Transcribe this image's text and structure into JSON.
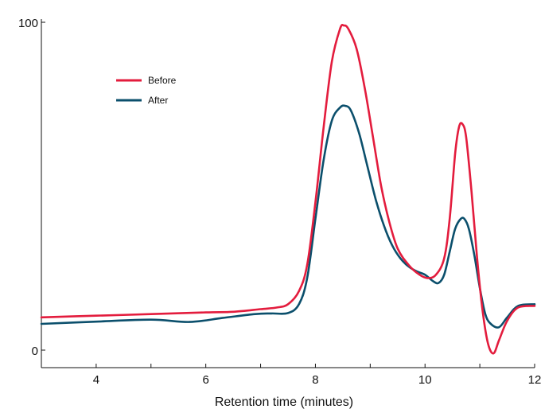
{
  "chart_data": {
    "type": "line",
    "title": "",
    "xlabel": "Retention time (minutes)",
    "ylabel": "",
    "xlim": [
      3,
      12
    ],
    "ylim": [
      0,
      100
    ],
    "x_ticks": [
      4,
      6,
      8,
      10,
      12
    ],
    "y_ticks": [
      0,
      100
    ],
    "grid": false,
    "legend_position": "top-left",
    "series": [
      {
        "name": "Before",
        "color": "#e31c3d",
        "x": [
          3.0,
          4.0,
          5.0,
          6.0,
          6.5,
          7.0,
          7.3,
          7.5,
          7.7,
          7.85,
          8.0,
          8.15,
          8.3,
          8.45,
          8.52,
          8.6,
          8.75,
          8.9,
          9.05,
          9.2,
          9.35,
          9.5,
          9.7,
          9.9,
          10.05,
          10.2,
          10.35,
          10.45,
          10.55,
          10.62,
          10.68,
          10.75,
          10.85,
          10.95,
          11.05,
          11.15,
          11.25,
          11.35,
          11.5,
          11.7,
          12.0
        ],
        "y": [
          10.0,
          10.5,
          11.0,
          11.5,
          11.7,
          12.5,
          13.0,
          14.0,
          18.0,
          26.0,
          45.0,
          68.0,
          88.0,
          98.0,
          99.0,
          98.0,
          92.0,
          80.0,
          65.0,
          50.0,
          39.0,
          31.0,
          26.0,
          23.0,
          22.0,
          23.0,
          28.0,
          40.0,
          60.0,
          68.0,
          69.0,
          65.0,
          48.0,
          28.0,
          12.0,
          2.0,
          -1.0,
          3.0,
          9.0,
          13.0,
          13.5
        ]
      },
      {
        "name": "After",
        "color": "#0b4f6c",
        "x": [
          3.0,
          4.0,
          5.0,
          5.7,
          6.3,
          6.9,
          7.2,
          7.5,
          7.7,
          7.85,
          8.0,
          8.15,
          8.3,
          8.45,
          8.55,
          8.65,
          8.8,
          8.95,
          9.1,
          9.25,
          9.4,
          9.55,
          9.7,
          9.85,
          10.0,
          10.15,
          10.25,
          10.35,
          10.45,
          10.55,
          10.65,
          10.72,
          10.8,
          10.9,
          11.0,
          11.1,
          11.2,
          11.35,
          11.5,
          11.7,
          12.0
        ],
        "y": [
          8.0,
          8.7,
          9.3,
          8.6,
          9.8,
          11.0,
          11.2,
          11.3,
          14.0,
          22.0,
          40.0,
          58.0,
          70.0,
          74.0,
          74.5,
          73.0,
          66.0,
          56.0,
          46.0,
          38.0,
          32.0,
          28.0,
          25.5,
          24.0,
          23.0,
          21.0,
          20.5,
          23.0,
          30.0,
          37.0,
          40.0,
          40.0,
          37.0,
          29.0,
          19.0,
          11.0,
          8.0,
          7.0,
          10.0,
          13.5,
          14.0
        ]
      }
    ]
  }
}
